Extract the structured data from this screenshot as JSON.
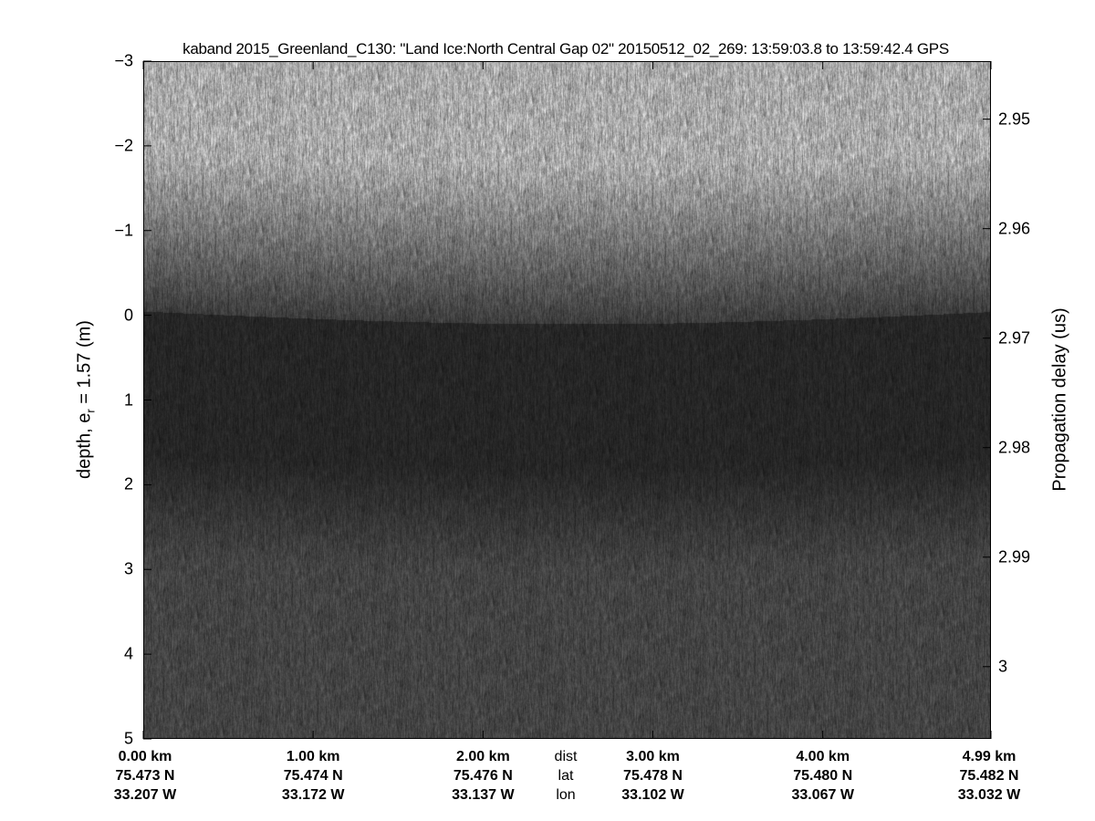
{
  "chart_data": {
    "type": "heatmap",
    "title": "kaband 2015_Greenland_C130: \"Land Ice:North Central Gap 02\"  20150512_02_269: 13:59:03.8 to 13:59:42.4 GPS",
    "colormap": "gray",
    "ylabel_left": "depth, e",
    "ylabel_left_sub": "r",
    "ylabel_left_rest": " = 1.57 (m)",
    "ylabel_right": "Propagation delay (us)",
    "ylim_left": [
      -3,
      5
    ],
    "ylim_right": [
      2.9447,
      3.0066
    ],
    "yticks_left": [
      "−3",
      "−2",
      "−1",
      "0",
      "1",
      "2",
      "3",
      "4",
      "5"
    ],
    "yticks_left_values": [
      -3,
      -2,
      -1,
      0,
      1,
      2,
      3,
      4,
      5
    ],
    "yticks_right": [
      "2.95",
      "2.96",
      "2.97",
      "2.98",
      "2.99",
      "3"
    ],
    "yticks_right_values": [
      2.95,
      2.96,
      2.97,
      2.98,
      2.99,
      3.0
    ],
    "xlim_km": [
      0,
      4.99
    ],
    "x_rows": {
      "dist_label": "dist",
      "lat_label": "lat",
      "lon_label": "lon",
      "dist": [
        "0.00 km",
        "1.00 km",
        "2.00 km",
        "3.00 km",
        "4.00 km",
        "4.99 km"
      ],
      "dist_values": [
        0,
        1,
        2,
        3,
        4,
        4.99
      ],
      "lat": [
        "75.473 N",
        "75.474 N",
        "75.476 N",
        "75.478 N",
        "75.480 N",
        "75.482 N"
      ],
      "lon": [
        "33.207 W",
        "33.172 W",
        "33.137 W",
        "33.102 W",
        "33.067 W",
        "33.032 W"
      ]
    },
    "surface_depth_m": 0,
    "grid": false
  }
}
